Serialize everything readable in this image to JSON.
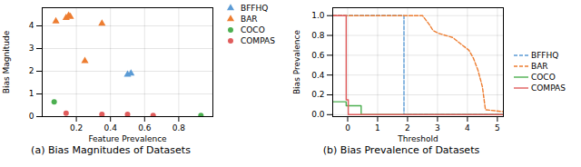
{
  "chart_data": [
    {
      "type": "scatter",
      "xlabel": "Feature Prevalence",
      "ylabel": "Bias Magnitude",
      "caption": "(a) Bias Magnitudes of Datasets",
      "xlim": [
        0.0,
        1.0
      ],
      "ylim": [
        0,
        4.8
      ],
      "xticks": [
        0.2,
        0.4,
        0.6,
        0.8
      ],
      "yticks": [
        0,
        1,
        2,
        3,
        4
      ],
      "grid": true,
      "legend": "upper right",
      "series": [
        {
          "name": "BFFHQ",
          "color": "#5B9BD5",
          "marker": "triangle",
          "x": [
            0.5,
            0.52
          ],
          "values": [
            1.85,
            1.9
          ]
        },
        {
          "name": "BAR",
          "color": "#ED7D31",
          "marker": "triangle",
          "x": [
            0.08,
            0.14,
            0.155,
            0.165,
            0.25,
            0.35
          ],
          "values": [
            4.2,
            4.35,
            4.45,
            4.4,
            2.45,
            4.1
          ]
        },
        {
          "name": "COCO",
          "color": "#4CAF50",
          "marker": "circle",
          "x": [
            0.07,
            0.93
          ],
          "values": [
            0.65,
            0.05
          ]
        },
        {
          "name": "COMPAS",
          "color": "#E05C5C",
          "marker": "circle",
          "x": [
            0.14,
            0.35,
            0.5,
            0.65
          ],
          "values": [
            0.15,
            0.1,
            0.1,
            0.05
          ]
        }
      ]
    },
    {
      "type": "line",
      "xlabel": "Threshold",
      "ylabel": "Bias Prevalence",
      "caption": "(b) Bias Prevalence of Datasets",
      "xlim": [
        -0.5,
        5.2
      ],
      "ylim": [
        -0.02,
        1.08
      ],
      "xticks": [
        0,
        1,
        2,
        3,
        4,
        5
      ],
      "yticks": [
        {
          "value": 0.0,
          "label": "0.0"
        },
        0.2,
        0.4,
        0.6,
        0.8,
        {
          "value": 1.0,
          "label": "1.0"
        }
      ],
      "grid": true,
      "legend": "center right",
      "series": [
        {
          "name": "BFFHQ",
          "color": "#5B9BD5",
          "line_style": "dashed",
          "x": [
            -0.5,
            1.88,
            1.88,
            5.2
          ],
          "values": [
            1.0,
            1.0,
            0.0,
            0.0
          ]
        },
        {
          "name": "BAR",
          "color": "#ED7D31",
          "line_style": "dashed",
          "x": [
            -0.5,
            2.5,
            2.75,
            2.85,
            3.05,
            3.5,
            4.05,
            4.2,
            4.35,
            4.5,
            4.6,
            5.2
          ],
          "values": [
            1.0,
            1.0,
            0.9,
            0.85,
            0.82,
            0.78,
            0.65,
            0.57,
            0.45,
            0.28,
            0.05,
            0.03
          ]
        },
        {
          "name": "COCO",
          "color": "#4CAF50",
          "line_style": "solid",
          "x": [
            -0.5,
            -0.05,
            -0.05,
            0.45,
            0.45,
            5.2
          ],
          "values": [
            0.13,
            0.13,
            0.09,
            0.09,
            0.0,
            0.0
          ]
        },
        {
          "name": "COMPAS",
          "color": "#E05C5C",
          "line_style": "solid",
          "x": [
            -0.5,
            -0.05,
            -0.05,
            0.02,
            0.02,
            5.2
          ],
          "values": [
            1.0,
            1.0,
            0.15,
            0.15,
            0.0,
            0.0
          ]
        }
      ]
    }
  ]
}
